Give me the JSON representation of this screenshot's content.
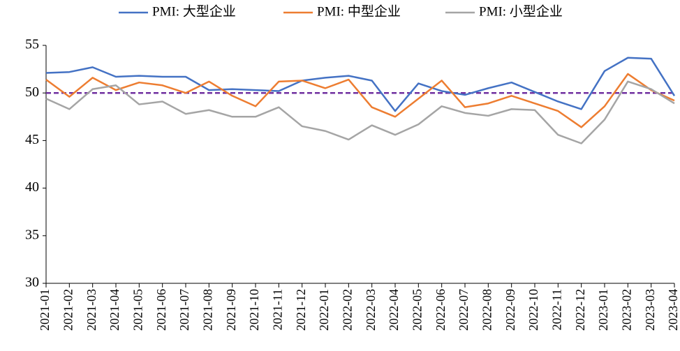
{
  "chart_data": {
    "type": "line",
    "categories": [
      "2021-01",
      "2021-02",
      "2021-03",
      "2021-04",
      "2021-05",
      "2021-06",
      "2021-07",
      "2021-08",
      "2021-09",
      "2021-10",
      "2021-11",
      "2021-12",
      "2022-01",
      "2022-02",
      "2022-03",
      "2022-04",
      "2022-05",
      "2022-06",
      "2022-07",
      "2022-08",
      "2022-09",
      "2022-10",
      "2022-11",
      "2022-12",
      "2023-01",
      "2023-02",
      "2023-03",
      "2023-04"
    ],
    "series": [
      {
        "name": "PMI: 大型企业",
        "color": "#4472c4",
        "values": [
          52.1,
          52.2,
          52.7,
          51.7,
          51.8,
          51.7,
          51.7,
          50.3,
          50.4,
          50.3,
          50.2,
          51.3,
          51.6,
          51.8,
          51.3,
          48.1,
          51.0,
          50.2,
          49.8,
          50.5,
          51.1,
          50.1,
          49.1,
          48.3,
          52.3,
          53.7,
          53.6,
          49.7
        ]
      },
      {
        "name": "PMI: 中型企业",
        "color": "#ed7d31",
        "values": [
          51.4,
          49.6,
          51.6,
          50.3,
          51.1,
          50.8,
          50.0,
          51.2,
          49.7,
          48.6,
          51.2,
          51.3,
          50.5,
          51.4,
          48.5,
          47.5,
          49.4,
          51.3,
          48.5,
          48.9,
          49.7,
          48.9,
          48.1,
          46.4,
          48.6,
          52.0,
          50.3,
          49.2
        ]
      },
      {
        "name": "PMI: 小型企业",
        "color": "#a5a5a5",
        "values": [
          49.4,
          48.3,
          50.4,
          50.8,
          48.8,
          49.1,
          47.8,
          48.2,
          47.5,
          47.5,
          48.5,
          46.5,
          46.0,
          45.1,
          46.6,
          45.6,
          46.7,
          48.6,
          47.9,
          47.6,
          48.3,
          48.2,
          45.6,
          44.7,
          47.2,
          51.2,
          50.4,
          48.9
        ]
      }
    ],
    "reference_line": {
      "value": 50,
      "color": "#7030a0"
    },
    "ylim": [
      30,
      55
    ],
    "yticks": [
      30,
      35,
      40,
      45,
      50,
      55
    ],
    "legend": "top"
  }
}
